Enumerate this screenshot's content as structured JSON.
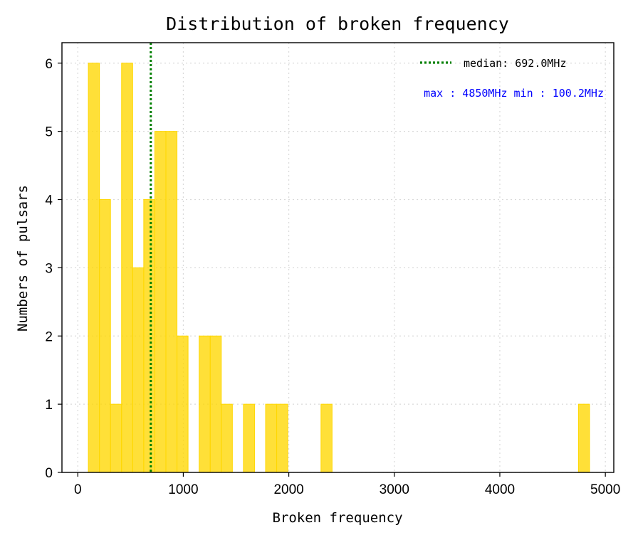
{
  "chart_data": {
    "type": "bar",
    "title": "Distribution of broken frequency",
    "xlabel": "Broken frequency",
    "ylabel": "Numbers of pulsars",
    "xlim": [
      -150,
      5080
    ],
    "ylim": [
      0,
      6.3
    ],
    "xticks": [
      0,
      1000,
      2000,
      3000,
      4000,
      5000
    ],
    "yticks": [
      0,
      1,
      2,
      3,
      4,
      5,
      6
    ],
    "grid": true,
    "bin_width": 104.996,
    "bins": [
      {
        "x": 100.2,
        "count": 6
      },
      {
        "x": 205.2,
        "count": 4
      },
      {
        "x": 310.2,
        "count": 1
      },
      {
        "x": 415.2,
        "count": 6
      },
      {
        "x": 520.2,
        "count": 3
      },
      {
        "x": 625.2,
        "count": 4
      },
      {
        "x": 730.2,
        "count": 5
      },
      {
        "x": 835.2,
        "count": 5
      },
      {
        "x": 940.2,
        "count": 2
      },
      {
        "x": 1150.2,
        "count": 2
      },
      {
        "x": 1255.2,
        "count": 2
      },
      {
        "x": 1360.2,
        "count": 1
      },
      {
        "x": 1570.1,
        "count": 1
      },
      {
        "x": 1780.1,
        "count": 1
      },
      {
        "x": 1885.1,
        "count": 1
      },
      {
        "x": 2305.1,
        "count": 1
      },
      {
        "x": 4745.0,
        "count": 1
      }
    ],
    "median": 692.0,
    "legend": {
      "label": "median:  692.0MHz",
      "position": "top-right"
    },
    "annotation": "max : 4850MHz min : 100.2MHz",
    "colors": {
      "bar_fill": "#FFD700",
      "bar_alpha": 0.78,
      "median_line": "#008000",
      "annotation": "#0000FF"
    }
  }
}
